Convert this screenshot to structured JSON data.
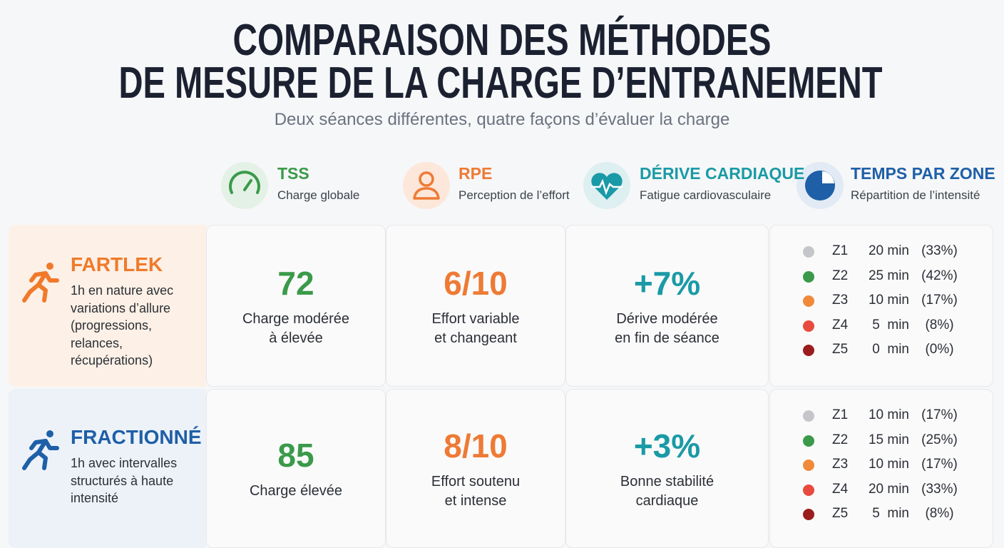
{
  "header": {
    "title": [
      "COMPARAISON DES MÉTHODES",
      "DE MESURE DE LA CHARGE D’ENTRANEMENT"
    ],
    "subtitle": "Deux séances différentes, quatre façons d’évaluer la charge"
  },
  "columns": [
    {
      "title": "TSS",
      "subtitle": "Charge globale"
    },
    {
      "title": "RPE",
      "subtitle": "Perception de l’effort"
    },
    {
      "title": "DÉRIVE CARDIAQUE",
      "subtitle": "Fatigue cardiovasculaire"
    },
    {
      "title": "TEMPS PAR ZONE",
      "subtitle": "Répartition de l’intensité"
    }
  ],
  "rows": [
    {
      "name": "FARTLEK",
      "description": [
        "1h en nature avec",
        "variations d’allure",
        "(progressions,",
        "relances, récupérations)"
      ],
      "metrics": [
        {
          "value": "72",
          "label": [
            "Charge modérée",
            "à élevée"
          ]
        },
        {
          "value": "6/10",
          "label": [
            "Effort variable",
            "et changeant"
          ]
        },
        {
          "value": "+7%",
          "label": [
            "Dérive modérée",
            "en fin de séance"
          ]
        }
      ],
      "zones": [
        {
          "zone": "Z1",
          "time": "20 min",
          "percent": "(33%)"
        },
        {
          "zone": "Z2",
          "time": "25 min",
          "percent": "(42%)"
        },
        {
          "zone": "Z3",
          "time": "10 min",
          "percent": "(17%)"
        },
        {
          "zone": "Z4",
          "time": "5  min",
          "percent": "(8%)"
        },
        {
          "zone": "Z5",
          "time": "0  min",
          "percent": "(0%)"
        }
      ]
    },
    {
      "name": "FRACTIONNÉ",
      "description": [
        "1h avec intervalles",
        "structurés à haute",
        "intensité"
      ],
      "metrics": [
        {
          "value": "85",
          "label": [
            "Charge élevée"
          ]
        },
        {
          "value": "8/10",
          "label": [
            "Effort soutenu",
            "et intense"
          ]
        },
        {
          "value": "+3%",
          "label": [
            "Bonne stabilité",
            "cardiaque"
          ]
        }
      ],
      "zones": [
        {
          "zone": "Z1",
          "time": "10 min",
          "percent": "(17%)"
        },
        {
          "zone": "Z2",
          "time": "15 min",
          "percent": "(25%)"
        },
        {
          "zone": "Z3",
          "time": "10 min",
          "percent": "(17%)"
        },
        {
          "zone": "Z4",
          "time": "20 min",
          "percent": "(33%)"
        },
        {
          "zone": "Z5",
          "time": "5  min",
          "percent": "(8%)"
        }
      ]
    }
  ]
}
